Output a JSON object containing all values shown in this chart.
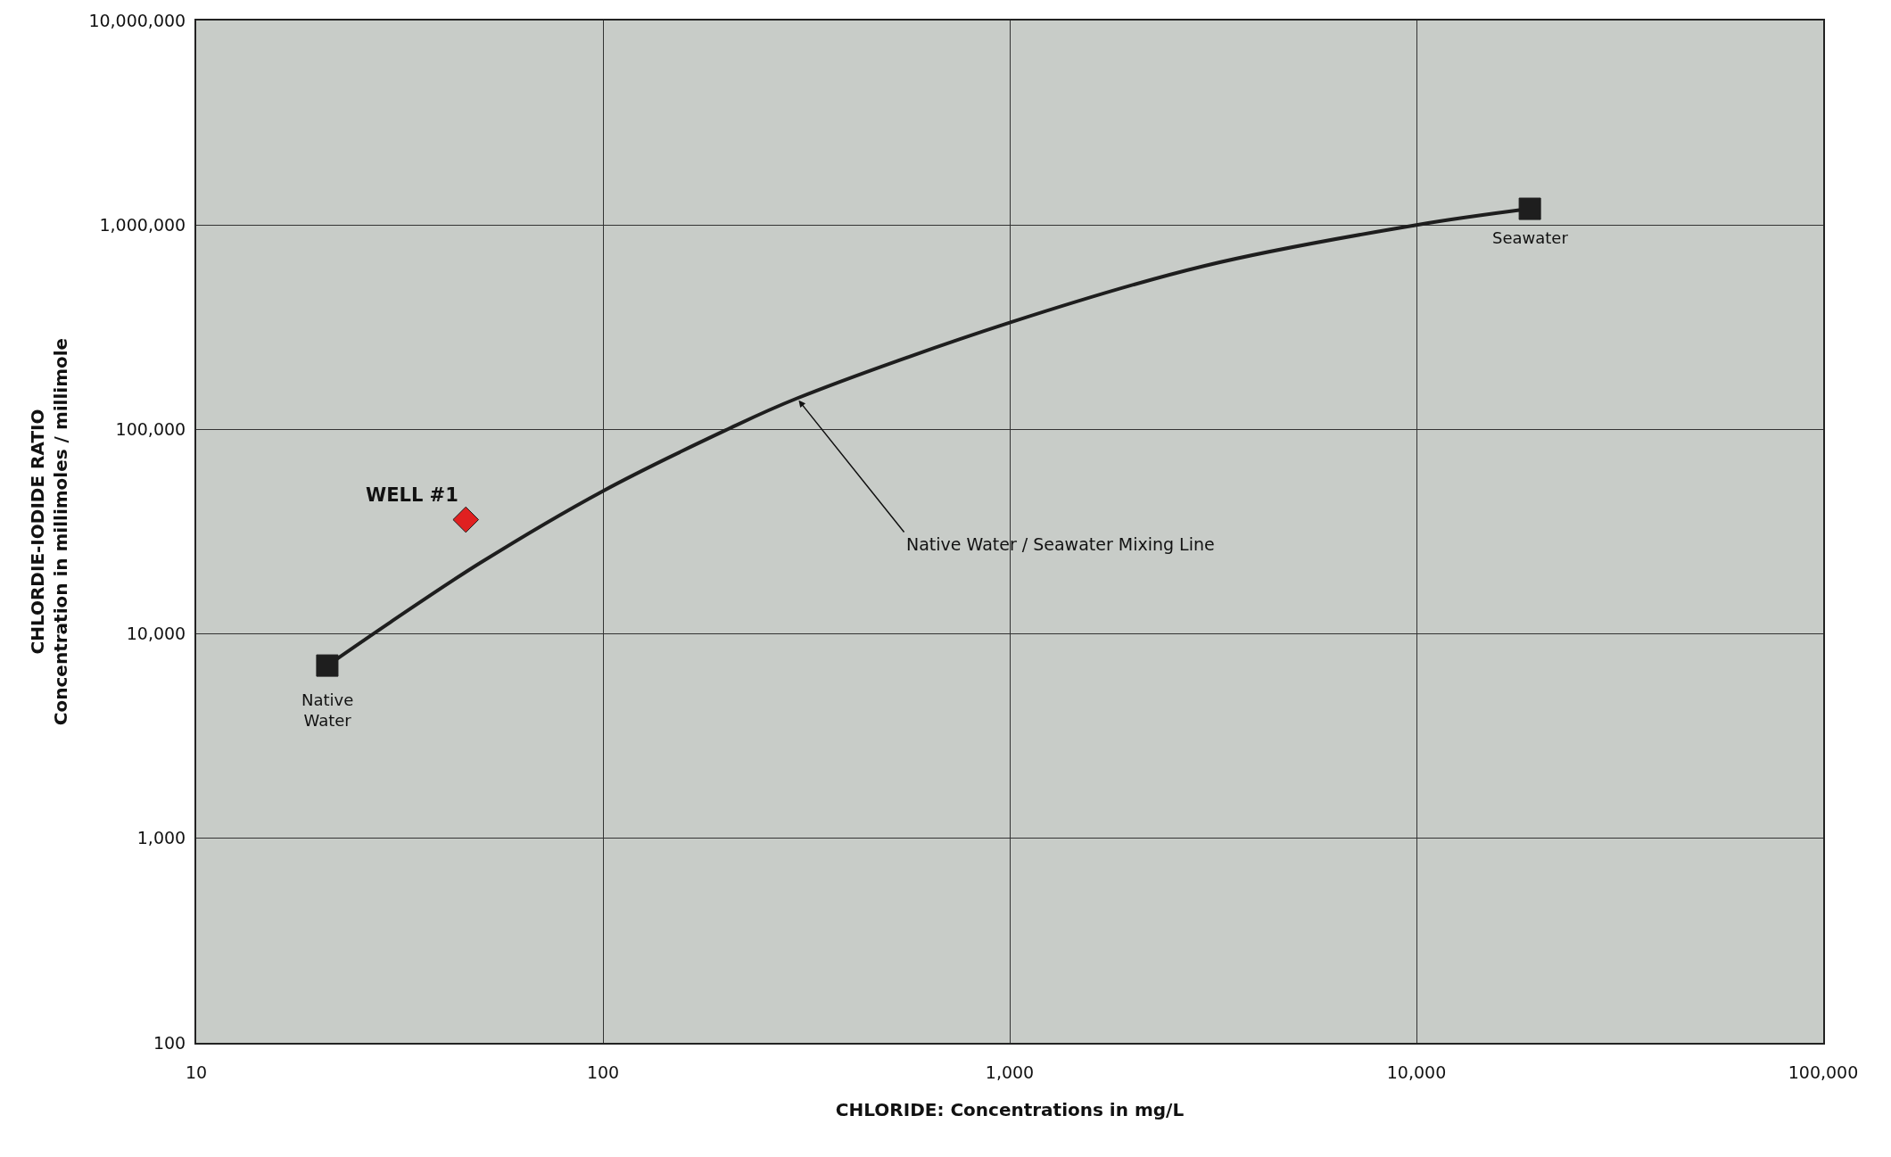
{
  "chart_data": {
    "type": "scatter",
    "xlabel": "CHLORIDE: Concentrations in mg/L",
    "ylabel": "CHLORDIE-IODIDE RATIO\nConcentration in millimoles / millimole",
    "log": "xy",
    "grid": true,
    "xlim": [
      10,
      100000
    ],
    "ylim": [
      100,
      10000000
    ],
    "xticks": [
      10,
      100,
      {
        "value": 1000,
        "label": "1,000"
      },
      {
        "value": 10000,
        "label": "10,000"
      },
      {
        "value": 100000,
        "label": "100,000"
      }
    ],
    "yticks": [
      100,
      {
        "value": 1000,
        "label": "1,000"
      },
      {
        "value": 10000,
        "label": "10,000"
      },
      {
        "value": 100000,
        "label": "100,000"
      },
      {
        "value": 1000000,
        "label": "1,000,000"
      },
      {
        "value": 10000000,
        "label": "10,000,000"
      }
    ],
    "series": [
      {
        "type": "line",
        "color": "#1e1e1e",
        "marker": "none",
        "line_style": "solid",
        "x": [
          21,
          30,
          50,
          100,
          200,
          300,
          1000,
          3000,
          10000,
          19000
        ],
        "values": [
          7000,
          11400,
          22300,
          50000,
          99000,
          142000,
          333000,
          630000,
          1000000,
          1200000
        ]
      },
      {
        "color": "#1e1e1e",
        "marker": "square",
        "x": [
          21,
          19000
        ],
        "values": [
          7000,
          1200000
        ]
      },
      {
        "color": "#e02020",
        "marker": "diamond",
        "x": [
          46
        ],
        "values": [
          36200
        ]
      }
    ],
    "annotations": [
      {
        "text": "WELL #1",
        "x": 46,
        "y": 36200
      },
      {
        "text": "Native\nWater",
        "x": 21,
        "y": 7000
      },
      {
        "text": "Seawater",
        "x": 19000,
        "y": 1200000
      },
      {
        "text": "Native Water / Seawater Mixing Line",
        "x": 300,
        "y": 142000
      }
    ]
  }
}
